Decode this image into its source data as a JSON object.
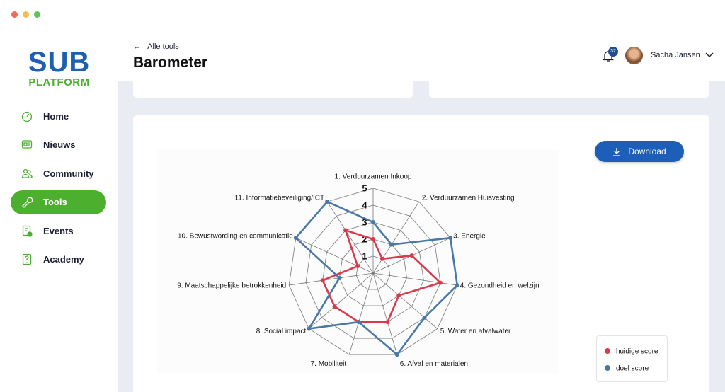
{
  "sidebar": {
    "logo": {
      "line1": "SUB",
      "line2": "PLATFORM"
    },
    "nav": [
      {
        "label": "Home",
        "active": false
      },
      {
        "label": "Nieuws",
        "active": false
      },
      {
        "label": "Community",
        "active": false
      },
      {
        "label": "Tools",
        "active": true
      },
      {
        "label": "Events",
        "active": false
      },
      {
        "label": "Academy",
        "active": false
      }
    ]
  },
  "header": {
    "back_link": "Alle tools",
    "title": "Barometer",
    "notification_count": 32,
    "user_name": "Sacha Jansen"
  },
  "download_button": "Download",
  "chart_data": {
    "type": "radar",
    "categories": [
      "1. Verduurzamen Inkoop",
      "2. Verduurzamen Huisvesting",
      "3. Energie",
      "4. Gezondheid en welzijn",
      "5. Water en afvalwater",
      "6. Afval en materialen",
      "7. Mobiliteit",
      "8. Social impact",
      "9. Maatschappelijke betrokkenheid",
      "10. Bewustwording en communicatie",
      "11. Informatiebeveiliging/ICT"
    ],
    "rlim": [
      0,
      5
    ],
    "rticks": [
      1,
      2,
      3,
      4,
      5
    ],
    "series": [
      {
        "name": "huidige score",
        "color": "#d9394b",
        "values": [
          2,
          1,
          2.5,
          4,
          2,
          3,
          3,
          3,
          3,
          1,
          3
        ]
      },
      {
        "name": "doel score",
        "color": "#4a78a6",
        "values": [
          3,
          2,
          5,
          5,
          4,
          5,
          3,
          5,
          2,
          5,
          5
        ]
      }
    ]
  }
}
